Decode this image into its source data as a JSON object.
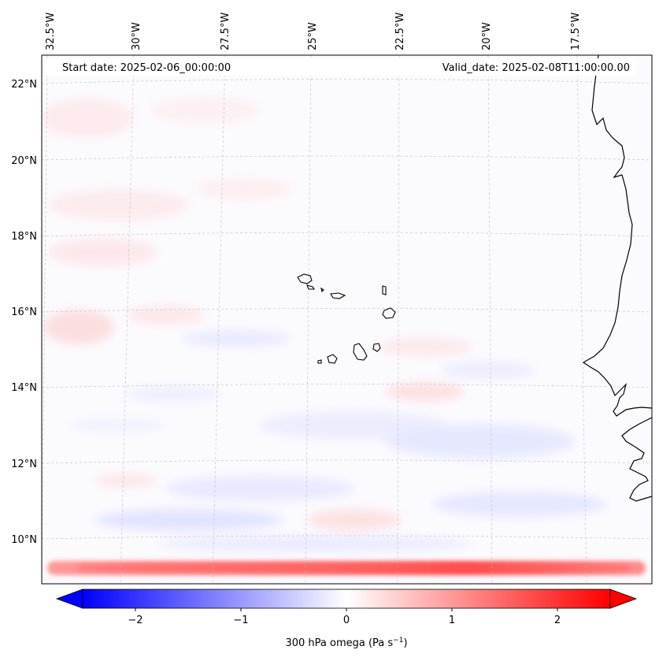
{
  "map": {
    "start_date_text": "Start date: 2025-02-06_00:00:00",
    "valid_date_text": "Valid_date: 2025-02-08T11:00:00.00",
    "lon_labels": [
      "32.5°W",
      "30°W",
      "27.5°W",
      "25°W",
      "22.5°W",
      "20°W",
      "17.5°W"
    ],
    "lat_labels": [
      "22°N",
      "20°N",
      "18°N",
      "16°N",
      "14°N",
      "12°N",
      "10°N"
    ],
    "field_description": "300 hPa vertical velocity (omega)"
  },
  "colorbar": {
    "label_prefix": "300 hPa omega (Pa s",
    "label_exponent": "−1",
    "label_suffix": ")",
    "tick_labels": [
      "−2",
      "−1",
      "0",
      "1",
      "2"
    ],
    "tick_values": [
      -2,
      -1,
      0,
      1,
      2
    ],
    "vmin": -2.5,
    "vmax": 2.5,
    "extend": "both",
    "cmap": "bwr",
    "color_low": "#0000ff",
    "color_mid": "#ffffff",
    "color_high": "#ff0000"
  },
  "colors": {
    "coastline": "#000000",
    "gridline": "#bbbbbb"
  }
}
